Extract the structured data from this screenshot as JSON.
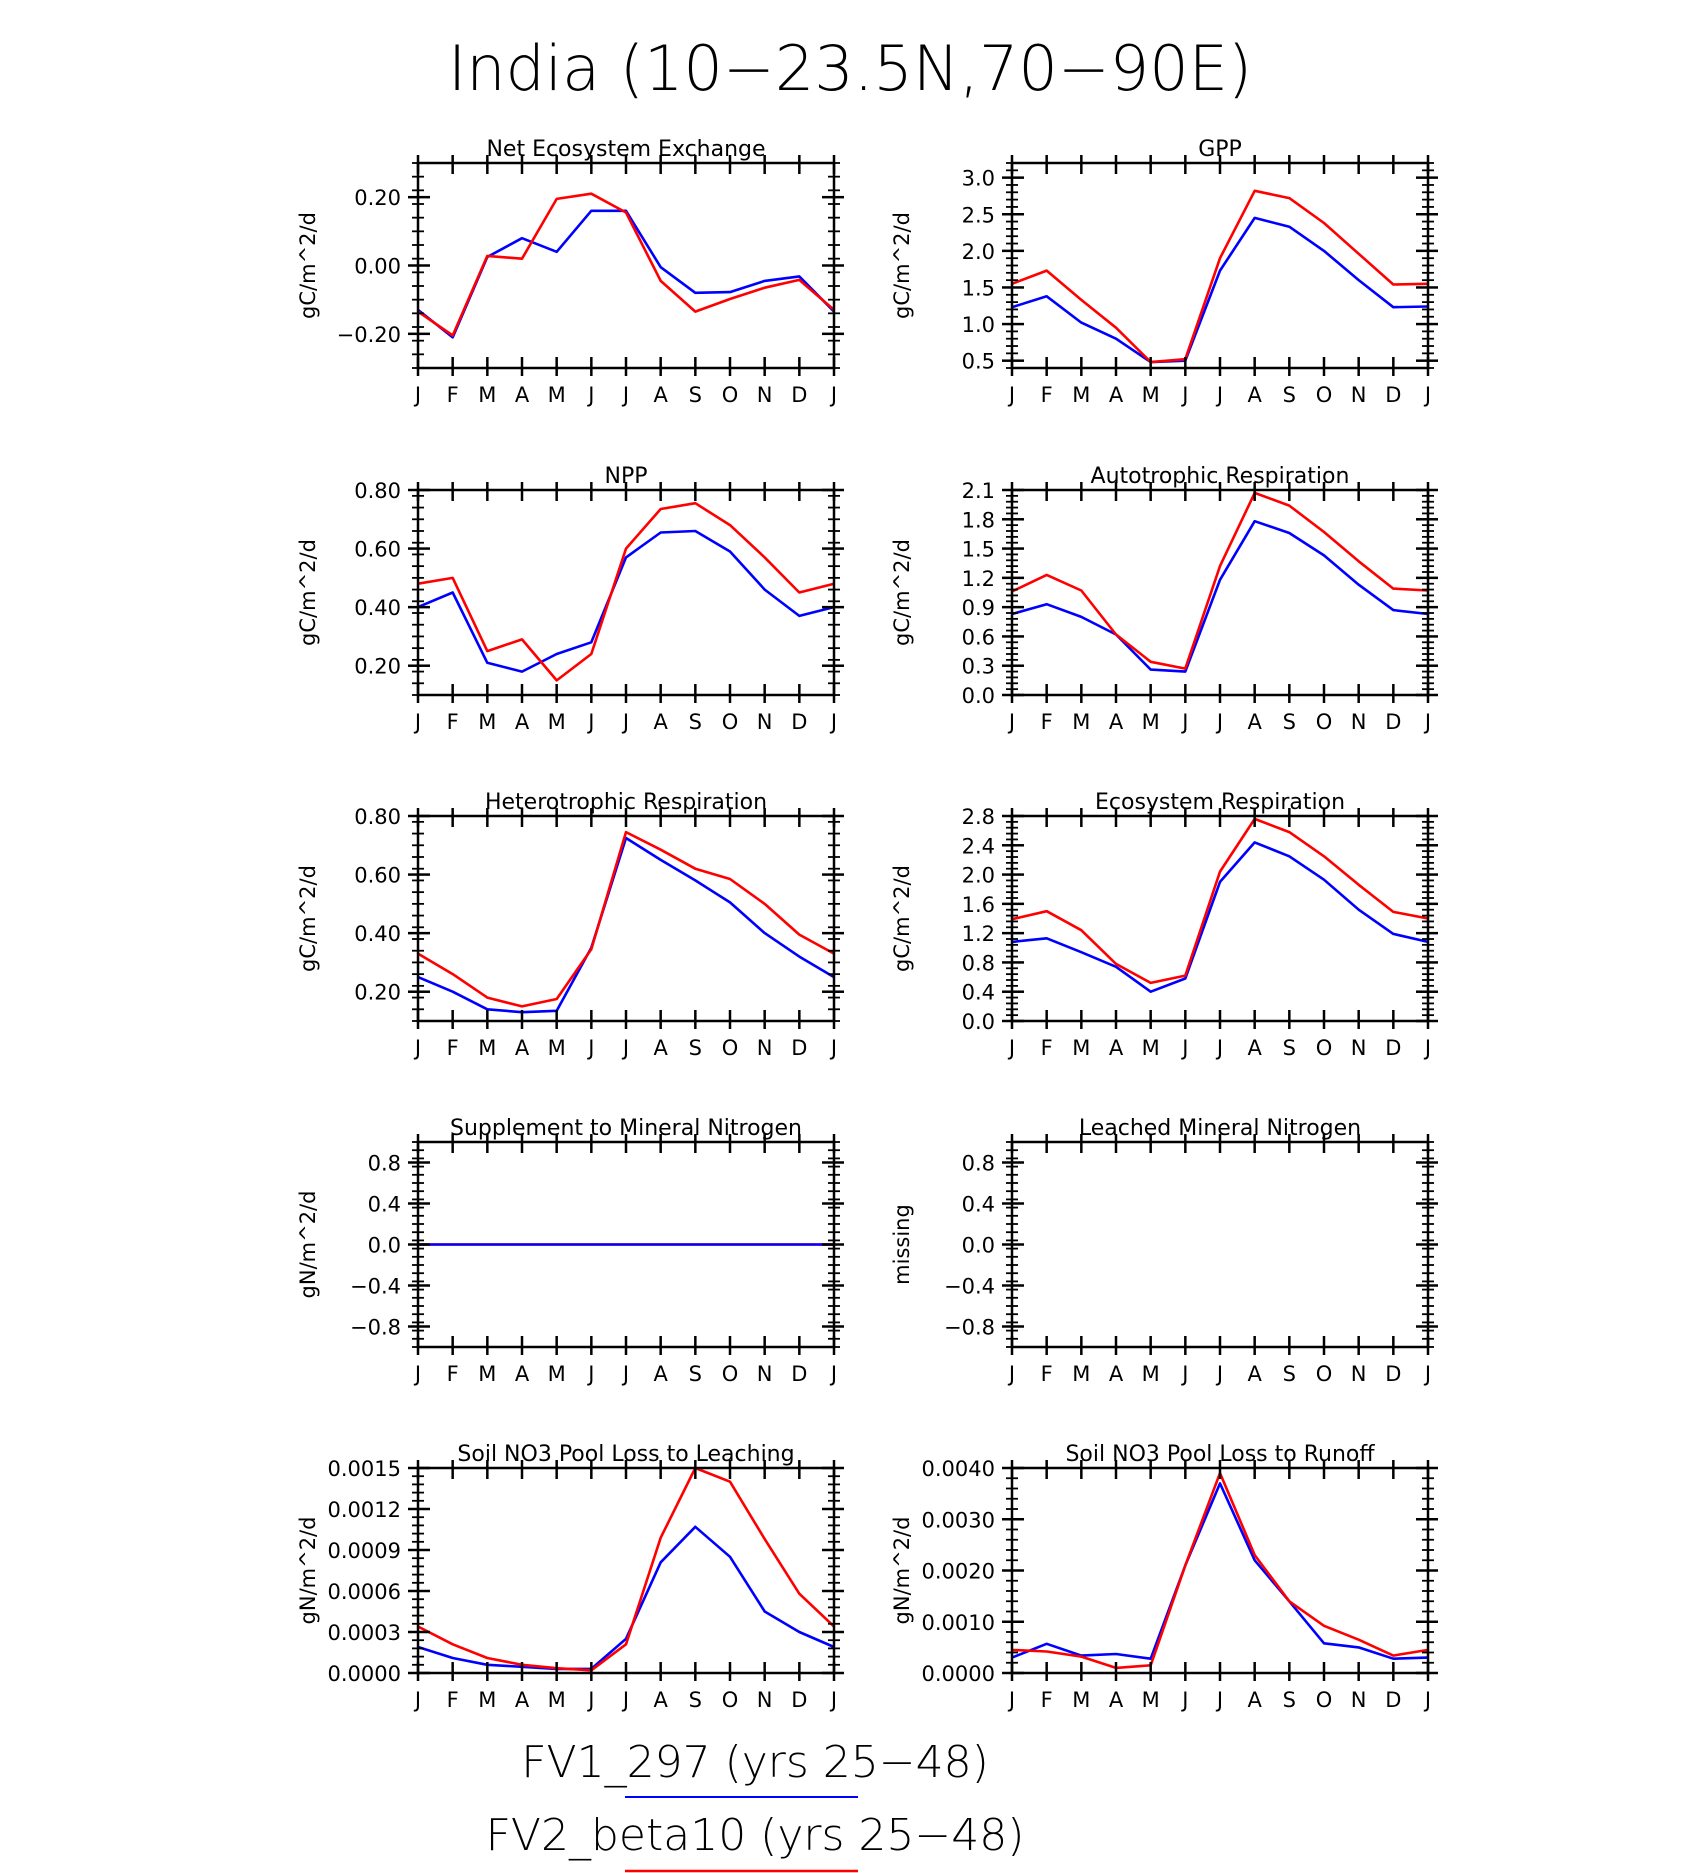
{
  "title": "India (10−23.5N,70−90E)",
  "months": [
    "J",
    "F",
    "M",
    "A",
    "M",
    "J",
    "J",
    "A",
    "S",
    "O",
    "N",
    "D",
    "J"
  ],
  "colors": {
    "series1": "#0000ff",
    "series2": "#ff0000",
    "axis": "#000000"
  },
  "legend": {
    "entries": [
      {
        "name": "FV1_297 (yrs 25−48)",
        "color": "#0000ff"
      },
      {
        "name": "FV2_beta10 (yrs 25−48)",
        "color": "#ff0000"
      }
    ]
  },
  "chart_data": [
    {
      "id": "nee",
      "type": "line",
      "title": "Net Ecosystem Exchange",
      "ylabel": "gC/m^2/d",
      "ylim": [
        -0.3,
        0.3
      ],
      "yticks": [
        -0.2,
        0,
        0.2
      ],
      "ytick_labels": [
        "−0.20",
        "0.00",
        "0.20"
      ],
      "series": [
        {
          "name": "FV1_297",
          "color": "#0000ff",
          "values": [
            -0.13,
            -0.21,
            0.025,
            0.08,
            0.04,
            0.16,
            0.16,
            -0.005,
            -0.08,
            -0.078,
            -0.045,
            -0.032,
            -0.135
          ]
        },
        {
          "name": "FV2_beta10",
          "color": "#ff0000",
          "values": [
            -0.135,
            -0.205,
            0.028,
            0.02,
            0.195,
            0.21,
            0.155,
            -0.045,
            -0.135,
            -0.098,
            -0.065,
            -0.042,
            -0.13
          ]
        }
      ]
    },
    {
      "id": "gpp",
      "type": "line",
      "title": "GPP",
      "ylabel": "gC/m^2/d",
      "ylim": [
        0.4,
        3.2
      ],
      "yticks": [
        0.5,
        1.0,
        1.5,
        2.0,
        2.5,
        3.0
      ],
      "ytick_labels": [
        "0.5",
        "1.0",
        "1.5",
        "2.0",
        "2.5",
        "3.0"
      ],
      "series": [
        {
          "name": "FV1_297",
          "color": "#0000ff",
          "values": [
            1.23,
            1.38,
            1.02,
            0.8,
            0.48,
            0.5,
            1.73,
            2.45,
            2.33,
            2.0,
            1.6,
            1.23,
            1.24
          ]
        },
        {
          "name": "FV2_beta10",
          "color": "#ff0000",
          "values": [
            1.55,
            1.73,
            1.33,
            0.95,
            0.48,
            0.52,
            1.9,
            2.82,
            2.72,
            2.38,
            1.96,
            1.54,
            1.55
          ]
        }
      ]
    },
    {
      "id": "npp",
      "type": "line",
      "title": "NPP",
      "ylabel": "gC/m^2/d",
      "ylim": [
        0.1,
        0.8
      ],
      "yticks": [
        0.2,
        0.4,
        0.6,
        0.8
      ],
      "ytick_labels": [
        "0.20",
        "0.40",
        "0.60",
        "0.80"
      ],
      "series": [
        {
          "name": "FV1_297",
          "color": "#0000ff",
          "values": [
            0.4,
            0.45,
            0.21,
            0.18,
            0.24,
            0.28,
            0.57,
            0.655,
            0.66,
            0.59,
            0.46,
            0.37,
            0.4
          ]
        },
        {
          "name": "FV2_beta10",
          "color": "#ff0000",
          "values": [
            0.48,
            0.5,
            0.25,
            0.29,
            0.15,
            0.24,
            0.6,
            0.735,
            0.755,
            0.68,
            0.57,
            0.45,
            0.48
          ]
        }
      ]
    },
    {
      "id": "ar",
      "type": "line",
      "title": "Autotrophic Respiration",
      "ylabel": "gC/m^2/d",
      "ylim": [
        0,
        2.1
      ],
      "yticks": [
        0,
        0.3,
        0.6,
        0.9,
        1.2,
        1.5,
        1.8,
        2.1
      ],
      "ytick_labels": [
        "0.0",
        "0.3",
        "0.6",
        "0.9",
        "1.2",
        "1.5",
        "1.8",
        "2.1"
      ],
      "series": [
        {
          "name": "FV1_297",
          "color": "#0000ff",
          "values": [
            0.83,
            0.93,
            0.8,
            0.62,
            0.26,
            0.24,
            1.18,
            1.78,
            1.66,
            1.43,
            1.13,
            0.87,
            0.83
          ]
        },
        {
          "name": "FV2_beta10",
          "color": "#ff0000",
          "values": [
            1.06,
            1.23,
            1.07,
            0.62,
            0.34,
            0.27,
            1.32,
            2.07,
            1.94,
            1.67,
            1.37,
            1.09,
            1.07
          ]
        }
      ]
    },
    {
      "id": "hr",
      "type": "line",
      "title": "Heterotrophic Respiration",
      "ylabel": "gC/m^2/d",
      "ylim": [
        0.1,
        0.8
      ],
      "yticks": [
        0.2,
        0.4,
        0.6,
        0.8
      ],
      "ytick_labels": [
        "0.20",
        "0.40",
        "0.60",
        "0.80"
      ],
      "series": [
        {
          "name": "FV1_297",
          "color": "#0000ff",
          "values": [
            0.25,
            0.2,
            0.14,
            0.13,
            0.135,
            0.35,
            0.725,
            0.65,
            0.58,
            0.505,
            0.4,
            0.32,
            0.25
          ]
        },
        {
          "name": "FV2_beta10",
          "color": "#ff0000",
          "values": [
            0.33,
            0.26,
            0.18,
            0.15,
            0.175,
            0.345,
            0.745,
            0.685,
            0.62,
            0.585,
            0.5,
            0.395,
            0.33
          ]
        }
      ]
    },
    {
      "id": "er",
      "type": "line",
      "title": "Ecosystem Respiration",
      "ylabel": "gC/m^2/d",
      "ylim": [
        0,
        2.8
      ],
      "yticks": [
        0,
        0.4,
        0.8,
        1.2,
        1.6,
        2.0,
        2.4,
        2.8
      ],
      "ytick_labels": [
        "0.0",
        "0.4",
        "0.8",
        "1.2",
        "1.6",
        "2.0",
        "2.4",
        "2.8"
      ],
      "series": [
        {
          "name": "FV1_297",
          "color": "#0000ff",
          "values": [
            1.08,
            1.13,
            0.94,
            0.74,
            0.4,
            0.58,
            1.9,
            2.44,
            2.25,
            1.93,
            1.52,
            1.19,
            1.08
          ]
        },
        {
          "name": "FV2_beta10",
          "color": "#ff0000",
          "values": [
            1.39,
            1.5,
            1.24,
            0.78,
            0.52,
            0.62,
            2.04,
            2.76,
            2.58,
            2.25,
            1.86,
            1.49,
            1.4
          ]
        }
      ]
    },
    {
      "id": "smin",
      "type": "line",
      "title": "Supplement to Mineral Nitrogen",
      "ylabel": "gN/m^2/d",
      "ylim": [
        -1,
        1
      ],
      "yticks": [
        -0.8,
        -0.4,
        0,
        0.4,
        0.8
      ],
      "ytick_labels": [
        "−0.8",
        "−0.4",
        "0.0",
        "0.4",
        "0.8"
      ],
      "series": [
        {
          "name": "FV2_beta10",
          "color": "#ff0000",
          "values": [
            0,
            0,
            0,
            0,
            0,
            0,
            0,
            0,
            0,
            0,
            0,
            0,
            0
          ]
        },
        {
          "name": "FV1_297",
          "color": "#0000ff",
          "values": [
            0,
            0,
            0,
            0,
            0,
            0,
            0,
            0,
            0,
            0,
            0,
            0,
            0
          ]
        }
      ]
    },
    {
      "id": "leach",
      "type": "line",
      "title": "Leached Mineral Nitrogen",
      "ylabel": "missing",
      "ylim": [
        -1,
        1
      ],
      "yticks": [
        -0.8,
        -0.4,
        0,
        0.4,
        0.8
      ],
      "ytick_labels": [
        "−0.8",
        "−0.4",
        "0.0",
        "0.4",
        "0.8"
      ],
      "series": []
    },
    {
      "id": "no3leach",
      "type": "line",
      "title": "Soil NO3 Pool Loss to Leaching",
      "ylabel": "gN/m^2/d",
      "ylim": [
        0,
        0.0015
      ],
      "yticks": [
        0,
        0.0003,
        0.0006,
        0.0009,
        0.0012,
        0.0015
      ],
      "ytick_labels": [
        "0.0000",
        "0.0003",
        "0.0006",
        "0.0009",
        "0.0012",
        "0.0015"
      ],
      "series": [
        {
          "name": "FV1_297",
          "color": "#0000ff",
          "values": [
            0.00019,
            0.00011,
            6e-05,
            4.5e-05,
            3e-05,
            3e-05,
            0.00025,
            0.00081,
            0.00107,
            0.00085,
            0.00045,
            0.0003,
            0.00019
          ]
        },
        {
          "name": "FV2_beta10",
          "color": "#ff0000",
          "values": [
            0.00034,
            0.00021,
            0.00011,
            6e-05,
            3.5e-05,
            2e-05,
            0.00021,
            0.00099,
            0.0015,
            0.0014,
            0.00098,
            0.00058,
            0.00034
          ]
        }
      ]
    },
    {
      "id": "no3runoff",
      "type": "line",
      "title": "Soil NO3 Pool Loss to Runoff",
      "ylabel": "gN/m^2/d",
      "ylim": [
        0,
        0.004
      ],
      "yticks": [
        0,
        0.001,
        0.002,
        0.003,
        0.004
      ],
      "ytick_labels": [
        "0.0000",
        "0.0010",
        "0.0020",
        "0.0030",
        "0.0040"
      ],
      "series": [
        {
          "name": "FV1_297",
          "color": "#0000ff",
          "values": [
            0.0003,
            0.00057,
            0.00034,
            0.00037,
            0.00028,
            0.0021,
            0.0037,
            0.0022,
            0.0014,
            0.00058,
            0.0005,
            0.00028,
            0.0003
          ]
        },
        {
          "name": "FV2_beta10",
          "color": "#ff0000",
          "values": [
            0.00045,
            0.00042,
            0.00032,
            0.0001,
            0.00015,
            0.0021,
            0.0039,
            0.0023,
            0.0014,
            0.00092,
            0.00065,
            0.00034,
            0.00045
          ]
        }
      ]
    }
  ]
}
